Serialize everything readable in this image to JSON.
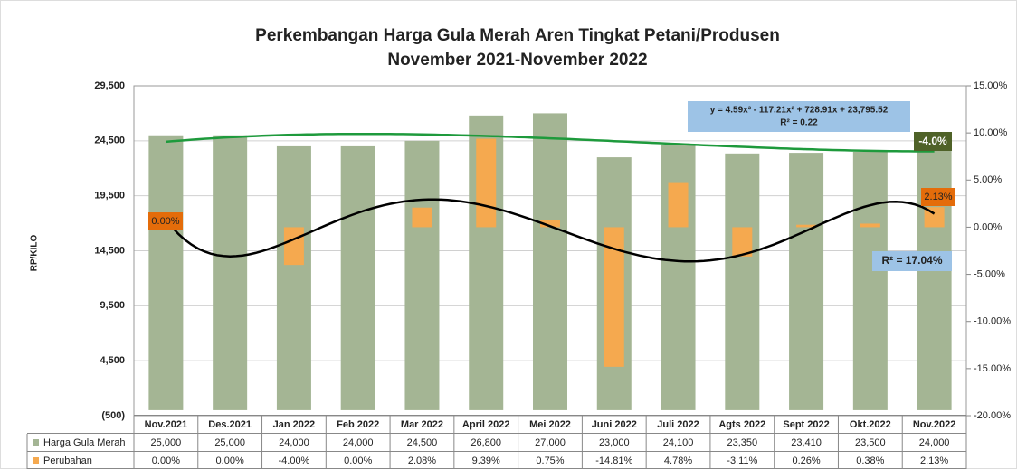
{
  "chart_data": {
    "type": "bar",
    "title": "Perkembangan Harga Gula Merah Aren Tingkat Petani/Produsen",
    "subtitle": "November  2021-November 2022",
    "y_label": "RP/KILO",
    "categories": [
      "Nov.2021",
      "Des.2021",
      "Jan 2022",
      "Feb 2022",
      "Mar 2022",
      "April 2022",
      "Mei 2022",
      "Juni 2022",
      "Juli 2022",
      "Agts 2022",
      "Sept 2022",
      "Okt.2022",
      "Nov.2022"
    ],
    "series": [
      {
        "name": "Harga Gula Merah",
        "color": "#a4b594",
        "values": [
          25000,
          25000,
          24000,
          24000,
          24500,
          26800,
          27000,
          23000,
          24100,
          23350,
          23410,
          23500,
          24000
        ],
        "value_labels": [
          "25,000",
          "25,000",
          "24,000",
          "24,000",
          "24,500",
          "26,800",
          "27,000",
          "23,000",
          "24,100",
          "23,350",
          "23,410",
          "23,500",
          "24,000"
        ]
      },
      {
        "name": "Perubahan",
        "color": "#f5a94f",
        "axis": "y2",
        "values": [
          0,
          0,
          -4,
          0,
          2.08,
          9.39,
          0.75,
          -14.81,
          4.78,
          -3.11,
          0.26,
          0.38,
          2.13
        ],
        "value_labels": [
          "0.00%",
          "0.00%",
          "-4.00%",
          "0.00%",
          "2.08%",
          "9.39%",
          "0.75%",
          "-14.81%",
          "4.78%",
          "-3.11%",
          "0.26%",
          "0.38%",
          "2.13%"
        ]
      }
    ],
    "ylim": [
      -500,
      29500
    ],
    "yticks": [
      {
        "value": -500,
        "label": "(500)"
      },
      {
        "value": 4500,
        "label": "4,500"
      },
      {
        "value": 9500,
        "label": "9,500"
      },
      {
        "value": 14500,
        "label": "14,500"
      },
      {
        "value": 19500,
        "label": "19,500"
      },
      {
        "value": 24500,
        "label": "24,500"
      },
      {
        "value": 29500,
        "label": "29,500"
      }
    ],
    "y2lim": [
      -20,
      15
    ],
    "y2ticks": [
      {
        "value": -20,
        "label": "-20.00%"
      },
      {
        "value": -15,
        "label": "-15.00%"
      },
      {
        "value": -10,
        "label": "-10.00%"
      },
      {
        "value": -5,
        "label": "-5.00%"
      },
      {
        "value": 0,
        "label": "0.00%"
      },
      {
        "value": 5,
        "label": "5.00%"
      },
      {
        "value": 10,
        "label": "10.00%"
      },
      {
        "value": 15,
        "label": "15.00%"
      }
    ],
    "grid": true,
    "annotations": {
      "equation": "y = 4.59x³ - 117.21x² + 728.91x + 23,795.52",
      "r2_price": "R² = 0.22",
      "last_change": "-4.0%",
      "last_label": "2.13%",
      "first_label": "0.00%",
      "r2_change": "R² = 17.04%"
    }
  }
}
